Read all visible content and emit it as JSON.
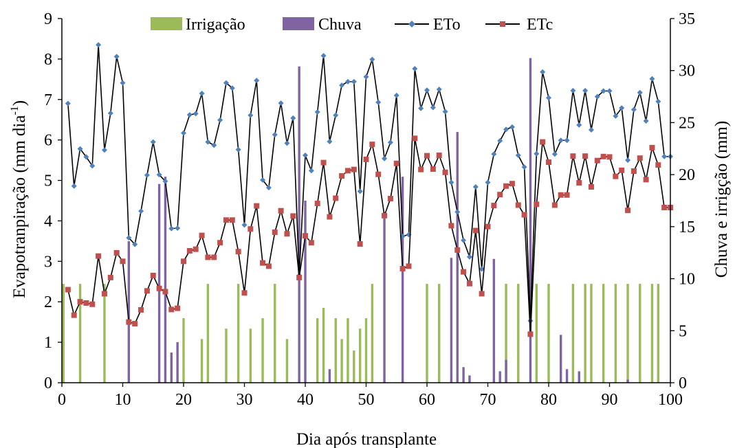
{
  "chart_data": {
    "type": "bar+line",
    "xlabel": "Dia após transplante",
    "ylabel_left": "Evapotranpiração (mm dia-1)",
    "ylabel_left_main": "Evapotranpiração (mm dia",
    "ylabel_left_sup": "-1",
    "ylabel_left_close": ")",
    "ylabel_right": "Chuva e irrigção (mm)",
    "xlim": [
      0,
      100
    ],
    "ylim_left": [
      0,
      9
    ],
    "ylim_right": [
      0,
      35
    ],
    "x_ticks": [
      0,
      10,
      20,
      30,
      40,
      50,
      60,
      70,
      80,
      90,
      100
    ],
    "y_left_ticks": [
      0,
      1,
      2,
      3,
      4,
      5,
      6,
      7,
      8,
      9
    ],
    "y_right_ticks": [
      0,
      5,
      10,
      15,
      20,
      25,
      30,
      35
    ],
    "legend_position": "top",
    "legend": [
      {
        "name": "Irrigação",
        "kind": "bar",
        "color": "#9bbb59"
      },
      {
        "name": "Chuva",
        "kind": "bar",
        "color": "#8064a2"
      },
      {
        "name": "ETo",
        "kind": "line",
        "color": "#4f81bd"
      },
      {
        "name": "ETc",
        "kind": "line",
        "color": "#c0504d"
      }
    ],
    "series": [
      {
        "name": "Irrigação",
        "type": "bar",
        "axis": "right",
        "color": "#9bbb59",
        "x": [
          0,
          3,
          7,
          20,
          23,
          24,
          27,
          29,
          31,
          33,
          35,
          37,
          42,
          43,
          45,
          46,
          47,
          48,
          49,
          50,
          51,
          60,
          62,
          73,
          75,
          78,
          80,
          84,
          86,
          87,
          89,
          91,
          93,
          95,
          97,
          98
        ],
        "values": [
          9.5,
          9.5,
          9.5,
          6.2,
          4.2,
          9.5,
          5.2,
          9.5,
          5.2,
          6.2,
          9.5,
          4.2,
          6.2,
          7.2,
          6.2,
          4.2,
          6.2,
          3.1,
          5.2,
          6.2,
          9.5,
          9.5,
          9.5,
          9.5,
          9.5,
          9.5,
          9.5,
          9.5,
          9.5,
          9.5,
          9.5,
          9.5,
          9.5,
          9.5,
          9.5,
          9.5
        ]
      },
      {
        "name": "Chuva",
        "type": "bar",
        "axis": "right",
        "color": "#8064a2",
        "x": [
          11,
          16,
          17,
          18,
          19,
          39,
          40,
          44,
          53,
          56,
          64,
          65,
          66,
          67,
          71,
          72,
          73,
          77,
          82,
          83,
          85,
          93
        ],
        "values": [
          13.6,
          19.1,
          19.8,
          2.9,
          3.9,
          30.4,
          17.5,
          1.3,
          16.4,
          19.8,
          12.0,
          24.1,
          1.5,
          0.7,
          11.9,
          1.1,
          2.2,
          31.2,
          4.6,
          1.3,
          1.1,
          0.3
        ]
      },
      {
        "name": "ETo",
        "type": "line",
        "axis": "left",
        "color": "#4f81bd",
        "x": [
          1,
          2,
          3,
          4,
          5,
          6,
          7,
          8,
          9,
          10,
          11,
          12,
          13,
          14,
          15,
          16,
          17,
          18,
          19,
          20,
          21,
          22,
          23,
          24,
          25,
          26,
          27,
          28,
          29,
          30,
          31,
          32,
          33,
          34,
          35,
          36,
          37,
          38,
          39,
          40,
          41,
          42,
          43,
          44,
          45,
          46,
          47,
          48,
          49,
          50,
          51,
          52,
          53,
          54,
          55,
          56,
          57,
          58,
          59,
          60,
          61,
          62,
          63,
          64,
          65,
          66,
          67,
          68,
          69,
          70,
          71,
          72,
          73,
          74,
          75,
          76,
          77,
          78,
          79,
          80,
          81,
          82,
          83,
          84,
          85,
          86,
          87,
          88,
          89,
          90,
          91,
          92,
          93,
          94,
          95,
          96,
          97,
          98,
          99,
          100
        ],
        "values": [
          6.9,
          4.86,
          5.78,
          5.58,
          5.36,
          8.35,
          5.75,
          6.66,
          8.06,
          7.41,
          3.58,
          3.42,
          4.24,
          5.13,
          5.95,
          5.14,
          4.98,
          3.81,
          3.82,
          6.17,
          6.62,
          6.65,
          7.15,
          5.95,
          5.87,
          6.49,
          7.41,
          7.28,
          5.76,
          3.9,
          6.61,
          7.47,
          5.01,
          4.82,
          6.13,
          6.91,
          5.92,
          6.54,
          2.65,
          5.62,
          5.24,
          6.69,
          8.08,
          5.96,
          6.61,
          7.35,
          7.44,
          7.44,
          4.73,
          7.56,
          7.99,
          6.93,
          5.54,
          5.94,
          7.1,
          3.62,
          3.66,
          7.76,
          6.78,
          7.23,
          6.8,
          7.25,
          6.7,
          4.95,
          4.22,
          3.52,
          3.11,
          4.84,
          2.81,
          4.95,
          5.65,
          5.98,
          6.26,
          6.32,
          5.62,
          5.33,
          1.53,
          5.66,
          7.68,
          7.04,
          5.65,
          5.99,
          5.99,
          7.22,
          6.37,
          7.22,
          6.25,
          7.07,
          7.21,
          7.21,
          6.59,
          6.79,
          5.5,
          6.75,
          7.17,
          6.47,
          7.51,
          6.95,
          5.59,
          5.59
        ]
      },
      {
        "name": "ETc",
        "type": "line",
        "axis": "left",
        "color": "#c0504d",
        "x": [
          1,
          2,
          3,
          4,
          5,
          6,
          7,
          8,
          9,
          10,
          11,
          12,
          13,
          14,
          15,
          16,
          17,
          18,
          19,
          20,
          21,
          22,
          23,
          24,
          25,
          26,
          27,
          28,
          29,
          30,
          31,
          32,
          33,
          34,
          35,
          36,
          37,
          38,
          39,
          40,
          41,
          42,
          43,
          44,
          45,
          46,
          47,
          48,
          49,
          50,
          51,
          52,
          53,
          54,
          55,
          56,
          57,
          58,
          59,
          60,
          61,
          62,
          63,
          64,
          65,
          66,
          67,
          68,
          69,
          70,
          71,
          72,
          73,
          74,
          75,
          76,
          77,
          78,
          79,
          80,
          81,
          82,
          83,
          84,
          85,
          86,
          87,
          88,
          89,
          90,
          91,
          92,
          93,
          94,
          95,
          96,
          97,
          98,
          99,
          100
        ],
        "values": [
          2.3,
          1.67,
          2.0,
          1.97,
          1.94,
          3.13,
          2.2,
          2.6,
          3.21,
          3.0,
          1.5,
          1.46,
          1.8,
          2.27,
          2.65,
          2.33,
          2.25,
          1.81,
          1.84,
          3.0,
          3.26,
          3.3,
          3.64,
          3.1,
          3.1,
          3.46,
          4.02,
          4.02,
          3.24,
          2.22,
          3.8,
          4.37,
          2.96,
          2.88,
          3.72,
          4.25,
          3.68,
          4.12,
          2.6,
          3.63,
          3.46,
          4.43,
          5.44,
          4.1,
          4.56,
          5.11,
          5.24,
          5.27,
          3.43,
          5.52,
          5.89,
          5.15,
          4.13,
          4.55,
          5.42,
          2.82,
          2.88,
          6.04,
          5.27,
          5.61,
          5.28,
          5.62,
          5.2,
          3.88,
          3.28,
          2.74,
          2.45,
          3.76,
          2.2,
          3.86,
          4.38,
          4.65,
          4.86,
          4.92,
          4.39,
          4.15,
          1.2,
          4.41,
          5.95,
          5.45,
          4.39,
          4.64,
          4.64,
          5.6,
          4.94,
          5.6,
          4.84,
          5.49,
          5.59,
          5.58,
          5.1,
          5.25,
          4.26,
          5.23,
          5.55,
          5.02,
          5.81,
          5.38,
          4.33,
          4.33
        ]
      }
    ]
  }
}
